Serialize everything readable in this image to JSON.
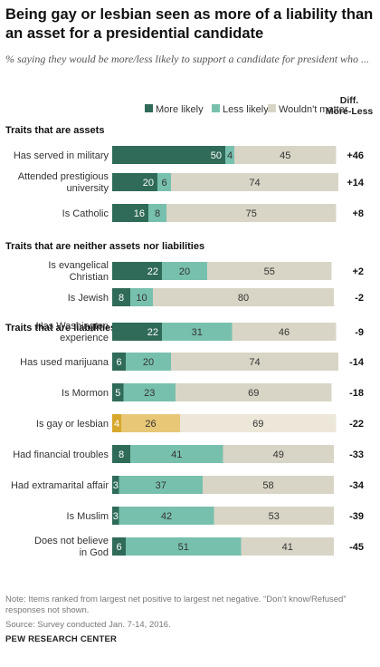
{
  "title": "Being gay or lesbian seen as more of a liability than an asset for a presidential candidate",
  "subtitle": "% saying they would be more/less likely to support a candidate for president who ...",
  "footnote": "Note: Items ranked from largest net positive to largest net negative. “Don’t know/Refused” responses not shown.",
  "source": "Source: Survey conducted Jan. 7-14, 2016.",
  "brand": "PEW RESEARCH CENTER",
  "colors": {
    "more": "#2f6b58",
    "less": "#78c0ae",
    "neutral": "#d9d5c6",
    "more_highlight": "#d6a72a",
    "less_highlight": "#e8c777",
    "neutral_highlight": "#ece7d8"
  },
  "chart_data": {
    "type": "bar",
    "stacked": true,
    "orientation": "horizontal",
    "legend": [
      "More likely",
      "Less likely",
      "Wouldn't matter"
    ],
    "diff_header": [
      "Diff.",
      "More-Less"
    ],
    "groups": [
      {
        "heading": "Traits that are assets",
        "rows": [
          {
            "label": [
              "Has served in military"
            ],
            "more": 50,
            "less": 4,
            "neutral": 45,
            "diff": "+46"
          },
          {
            "label": [
              "Attended prestigious",
              "university"
            ],
            "more": 20,
            "less": 6,
            "neutral": 74,
            "diff": "+14"
          },
          {
            "label": [
              "Is Catholic"
            ],
            "more": 16,
            "less": 8,
            "neutral": 75,
            "diff": "+8"
          }
        ]
      },
      {
        "heading": "Traits that are neither assets nor liabilities",
        "rows": [
          {
            "label": [
              "Is evangelical",
              "Christian"
            ],
            "more": 22,
            "less": 20,
            "neutral": 55,
            "diff": "+2"
          },
          {
            "label": [
              "Is Jewish"
            ],
            "more": 8,
            "less": 10,
            "neutral": 80,
            "diff": "-2"
          }
        ]
      },
      {
        "heading": "Traits that are liabilities",
        "rows": [
          {
            "label": [
              "Has Washington",
              "experience"
            ],
            "more": 22,
            "less": 31,
            "neutral": 46,
            "diff": "-9"
          },
          {
            "label": [
              "Has used marijuana"
            ],
            "more": 6,
            "less": 20,
            "neutral": 74,
            "diff": "-14"
          },
          {
            "label": [
              "Is Mormon"
            ],
            "more": 5,
            "less": 23,
            "neutral": 69,
            "diff": "-18"
          },
          {
            "label": [
              "Is gay or lesbian"
            ],
            "more": 4,
            "less": 26,
            "neutral": 69,
            "diff": "-22",
            "highlight": true
          },
          {
            "label": [
              "Had financial troubles"
            ],
            "more": 8,
            "less": 41,
            "neutral": 49,
            "diff": "-33"
          },
          {
            "label": [
              "Had extramarital affair"
            ],
            "more": 3,
            "less": 37,
            "neutral": 58,
            "diff": "-34"
          },
          {
            "label": [
              "Is Muslim"
            ],
            "more": 3,
            "less": 42,
            "neutral": 53,
            "diff": "-39"
          },
          {
            "label": [
              "Does not believe",
              "in God"
            ],
            "more": 6,
            "less": 51,
            "neutral": 41,
            "diff": "-45"
          }
        ]
      }
    ]
  }
}
